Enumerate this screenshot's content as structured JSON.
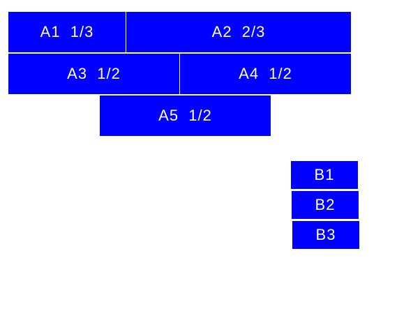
{
  "color": "#0000ff",
  "row_a": [
    {
      "label": "A1  1/3"
    },
    {
      "label": "A2  2/3"
    },
    {
      "label": "A3  1/2"
    },
    {
      "label": "A4  1/2"
    },
    {
      "label": "A5  1/2"
    }
  ],
  "row_b": [
    {
      "label": "B1"
    },
    {
      "label": "B2"
    },
    {
      "label": "B3"
    }
  ]
}
